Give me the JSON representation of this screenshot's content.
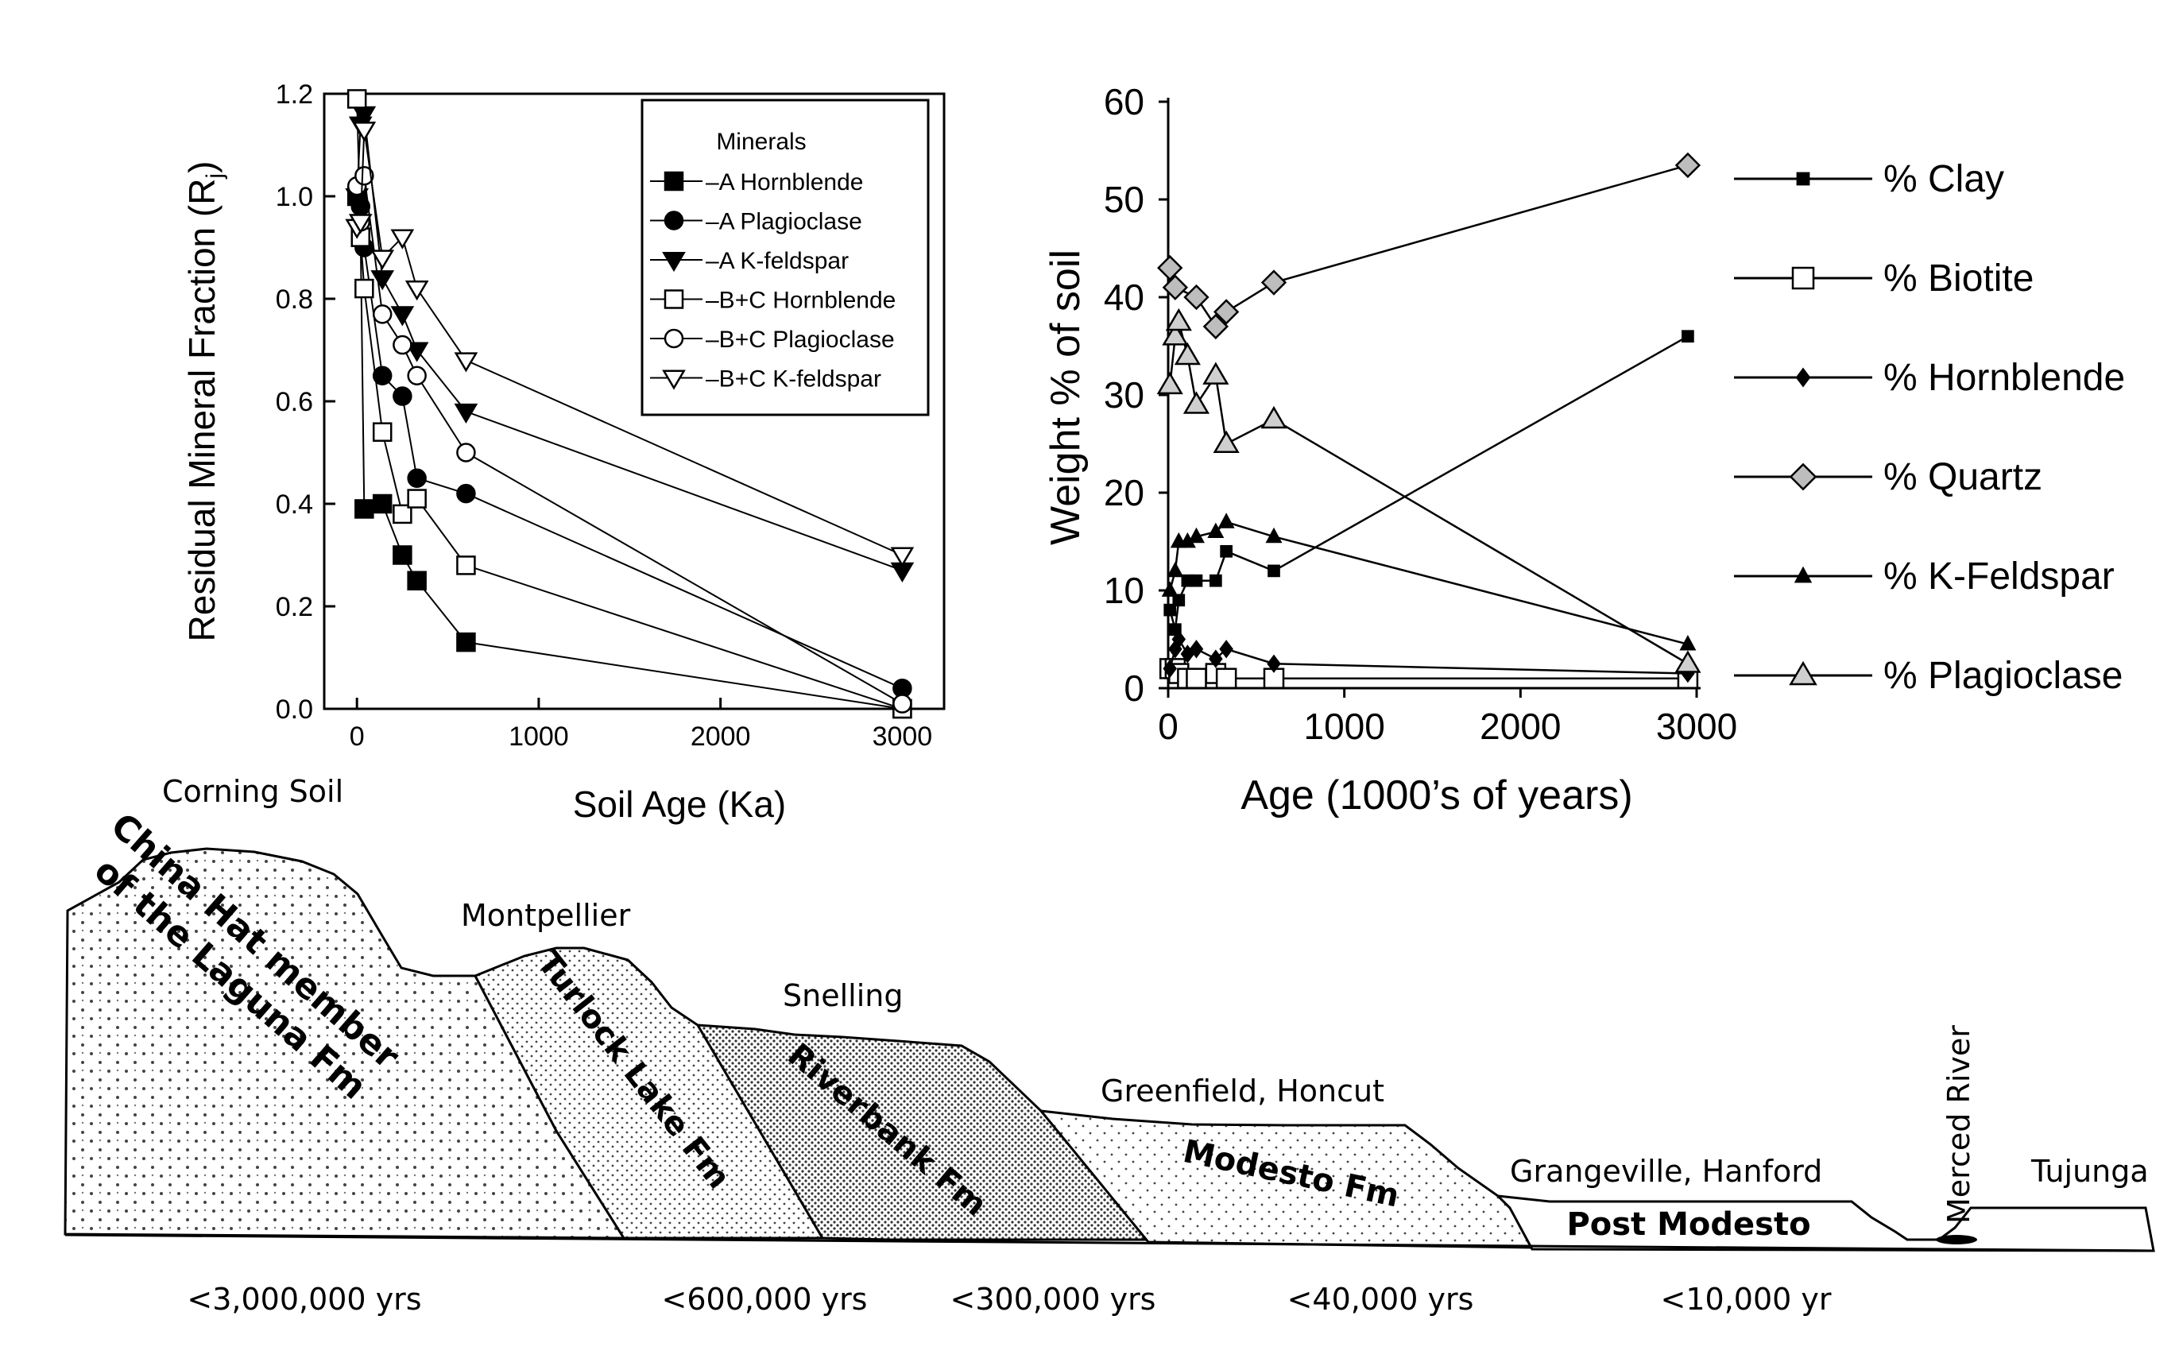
{
  "chart_data": [
    {
      "type": "line",
      "xlabel": "Soil Age (Ka)",
      "ylabel": "Residual Mineral Fraction (R",
      "ylabel_sub": "j",
      "ylabel_end": ")",
      "xlim": [
        -180,
        3230
      ],
      "ylim": [
        0,
        1.2
      ],
      "xticks": [
        0,
        1000,
        2000,
        3000
      ],
      "xtick_labels": [
        "0",
        "1000",
        "2000",
        "3000"
      ],
      "yticks": [
        0,
        0.2,
        0.4,
        0.6,
        0.8,
        1.0,
        1.2
      ],
      "ytick_labels": [
        "0.0",
        "0.2",
        "0.4",
        "0.6",
        "0.8",
        "1.0",
        "1.2"
      ],
      "grid": false,
      "legend": {
        "title": "Minerals",
        "position": "top-right"
      },
      "series": [
        {
          "name": "A Hornblende",
          "marker": "square",
          "filled": true,
          "x": [
            0,
            20,
            40,
            140,
            250,
            330,
            600,
            3000
          ],
          "y": [
            1.0,
            0.92,
            0.39,
            0.4,
            0.3,
            0.25,
            0.13,
            0.0
          ]
        },
        {
          "name": "A Plagioclase",
          "marker": "circle",
          "filled": true,
          "x": [
            0,
            20,
            40,
            140,
            250,
            330,
            600,
            3000
          ],
          "y": [
            1.0,
            0.98,
            0.9,
            0.65,
            0.61,
            0.45,
            0.42,
            0.04
          ]
        },
        {
          "name": "A K-feldspar",
          "marker": "triangle-down",
          "filled": true,
          "x": [
            0,
            20,
            40,
            140,
            250,
            330,
            600,
            3000
          ],
          "y": [
            1.0,
            1.14,
            1.16,
            0.84,
            0.77,
            0.7,
            0.58,
            0.27
          ]
        },
        {
          "name": "B+C Hornblende",
          "marker": "square",
          "filled": false,
          "x": [
            0,
            20,
            40,
            140,
            250,
            330,
            600,
            3000
          ],
          "y": [
            1.19,
            0.92,
            0.82,
            0.54,
            0.38,
            0.41,
            0.28,
            0.0
          ]
        },
        {
          "name": "B+C Plagioclase",
          "marker": "circle",
          "filled": false,
          "x": [
            0,
            20,
            40,
            140,
            250,
            330,
            600,
            3000
          ],
          "y": [
            1.02,
            0.95,
            1.04,
            0.77,
            0.71,
            0.65,
            0.5,
            0.01
          ]
        },
        {
          "name": "B+C K-feldspar",
          "marker": "triangle-down",
          "filled": false,
          "x": [
            0,
            20,
            40,
            140,
            250,
            330,
            600,
            3000
          ],
          "y": [
            0.94,
            0.95,
            1.13,
            0.88,
            0.92,
            0.82,
            0.68,
            0.3
          ]
        }
      ]
    },
    {
      "type": "line",
      "xlabel": "Age (1000’s of years)",
      "ylabel": "Weight % of soil",
      "xlim": [
        0,
        3000
      ],
      "ylim": [
        0,
        60
      ],
      "xticks": [
        0,
        1000,
        2000,
        3000
      ],
      "xtick_labels": [
        "0",
        "1000",
        "2000",
        "3000"
      ],
      "yticks": [
        0,
        10,
        20,
        30,
        40,
        50,
        60
      ],
      "ytick_labels": [
        "0",
        "10",
        "20",
        "30",
        "40",
        "50",
        "60"
      ],
      "grid": false,
      "legend": {
        "position": "right"
      },
      "series": [
        {
          "name": "% Clay",
          "marker": "small-square",
          "x": [
            10,
            40,
            60,
            110,
            160,
            270,
            330,
            600,
            2950
          ],
          "y": [
            8,
            6,
            9,
            11,
            11,
            11,
            14,
            12,
            36
          ]
        },
        {
          "name": "% Biotite",
          "marker": "square-open",
          "x": [
            10,
            40,
            60,
            110,
            160,
            270,
            330,
            600,
            2950
          ],
          "y": [
            2,
            2,
            1.5,
            1,
            1,
            1.5,
            1,
            1,
            1
          ]
        },
        {
          "name": "% Hornblende",
          "marker": "small-diamond",
          "x": [
            10,
            40,
            60,
            110,
            160,
            270,
            330,
            600,
            2950
          ],
          "y": [
            2,
            4,
            5,
            3.5,
            4,
            3,
            4,
            2.5,
            1.5
          ]
        },
        {
          "name": "% Quartz",
          "marker": "diamond-open",
          "x": [
            10,
            40,
            160,
            270,
            330,
            600,
            2950
          ],
          "y": [
            43,
            41,
            40,
            37,
            38.5,
            41.5,
            53.5
          ]
        },
        {
          "name": "% K-Feldspar",
          "marker": "small-triangle",
          "x": [
            10,
            40,
            60,
            110,
            160,
            270,
            330,
            600,
            2950
          ],
          "y": [
            10,
            12,
            15,
            15,
            15.5,
            16,
            17,
            15.5,
            4.5
          ]
        },
        {
          "name": "% Plagioclase",
          "marker": "triangle-open",
          "x": [
            10,
            40,
            60,
            110,
            160,
            270,
            330,
            600,
            2950
          ],
          "y": [
            31,
            36,
            37.5,
            34,
            29,
            32,
            25,
            27.5,
            2.5
          ]
        }
      ]
    }
  ],
  "cross_section": {
    "units": [
      {
        "name": "China Hat member of the Laguna Fm",
        "line1": "China Hat member",
        "line2": "of the Laguna Fm",
        "soil": "Corning Soil",
        "age": "<3,000,000 yrs",
        "fill": "#e4e4e4"
      },
      {
        "name": "Turlock Lake Fm",
        "soil": "Montpellier",
        "age": "<600,000 yrs",
        "fill": "#eaeaea"
      },
      {
        "name": "Riverbank Fm",
        "soil": "Snelling",
        "age": "<300,000 yrs",
        "fill": "#cfcfcf"
      },
      {
        "name": "Modesto Fm",
        "soil": "Greenfield, Honcut",
        "age": "<40,000 yrs",
        "fill": "#f2f2f2"
      },
      {
        "name": "Post Modesto",
        "soil": "Grangeville, Hanford",
        "age": "<10,000 yr",
        "fill": "#ffffff"
      }
    ],
    "river_label": "Merced River",
    "tujunga_label": "Tujunga"
  }
}
